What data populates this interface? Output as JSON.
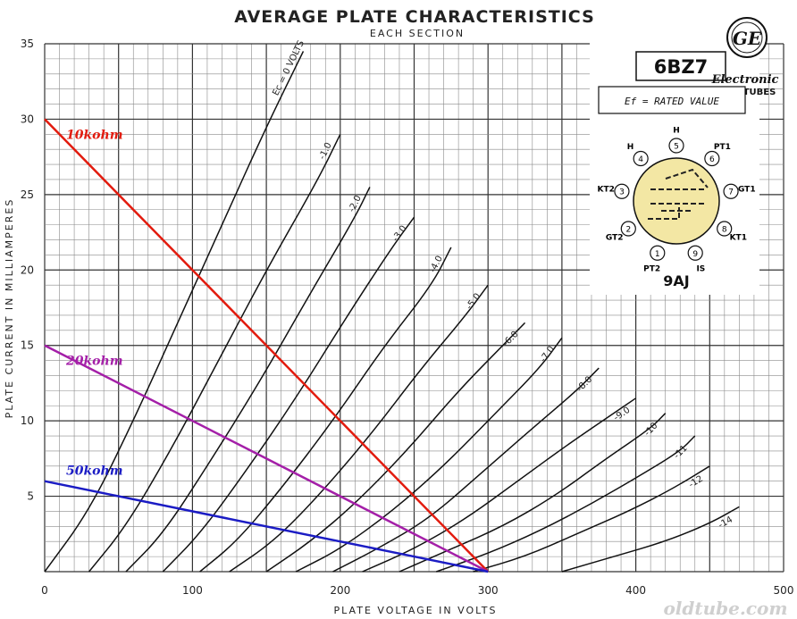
{
  "chart_data": {
    "type": "line",
    "title": "AVERAGE PLATE CHARACTERISTICS",
    "subtitle": "EACH SECTION",
    "xlabel": "PLATE VOLTAGE IN VOLTS",
    "ylabel": "PLATE CURRENT IN MILLIAMPERES",
    "xlim": [
      0,
      500
    ],
    "ylim": [
      0,
      35
    ],
    "x_ticks": [
      "0",
      "100",
      "200",
      "300",
      "400",
      "500"
    ],
    "y_ticks": [
      "5",
      "10",
      "15",
      "20",
      "25",
      "30",
      "35"
    ],
    "grid": true,
    "tube_curves": [
      {
        "label": "Ec = 0 VOLTS",
        "x0": 0,
        "points": [
          [
            0,
            0
          ],
          [
            30,
            4
          ],
          [
            60,
            10
          ],
          [
            90,
            16.5
          ],
          [
            120,
            23
          ],
          [
            150,
            29.5
          ],
          [
            175,
            34.5
          ]
        ]
      },
      {
        "label": "-1.0",
        "x0": 30,
        "points": [
          [
            30,
            0
          ],
          [
            55,
            3
          ],
          [
            85,
            8
          ],
          [
            115,
            13.5
          ],
          [
            150,
            20
          ],
          [
            185,
            26
          ],
          [
            200,
            29
          ]
        ]
      },
      {
        "label": "-2.0",
        "x0": 55,
        "points": [
          [
            55,
            0
          ],
          [
            80,
            2.5
          ],
          [
            110,
            7
          ],
          [
            145,
            12.5
          ],
          [
            180,
            18.5
          ],
          [
            210,
            23.5
          ],
          [
            220,
            25.5
          ]
        ]
      },
      {
        "label": "-3.0",
        "x0": 80,
        "points": [
          [
            80,
            0
          ],
          [
            105,
            2.5
          ],
          [
            135,
            6.5
          ],
          [
            170,
            11.5
          ],
          [
            205,
            17
          ],
          [
            235,
            21.5
          ],
          [
            250,
            23.5
          ]
        ]
      },
      {
        "label": "-4.0",
        "x0": 105,
        "points": [
          [
            105,
            0
          ],
          [
            130,
            2
          ],
          [
            160,
            5.5
          ],
          [
            195,
            10
          ],
          [
            230,
            15
          ],
          [
            262,
            19
          ],
          [
            275,
            21.5
          ]
        ]
      },
      {
        "label": "-5.0",
        "x0": 125,
        "points": [
          [
            125,
            0
          ],
          [
            155,
            2
          ],
          [
            185,
            5
          ],
          [
            220,
            9
          ],
          [
            255,
            13.5
          ],
          [
            285,
            17
          ],
          [
            300,
            19
          ]
        ]
      },
      {
        "label": "-6.0",
        "x0": 150,
        "points": [
          [
            150,
            0
          ],
          [
            180,
            2
          ],
          [
            210,
            4.5
          ],
          [
            245,
            8
          ],
          [
            280,
            12
          ],
          [
            310,
            15
          ],
          [
            325,
            16.5
          ]
        ]
      },
      {
        "label": "-7.0",
        "x0": 170,
        "points": [
          [
            170,
            0
          ],
          [
            200,
            1.5
          ],
          [
            235,
            4
          ],
          [
            270,
            7
          ],
          [
            305,
            10.5
          ],
          [
            335,
            13.5
          ],
          [
            350,
            15.5
          ]
        ]
      },
      {
        "label": "-8.0",
        "x0": 195,
        "points": [
          [
            195,
            0
          ],
          [
            225,
            1.5
          ],
          [
            260,
            3.5
          ],
          [
            295,
            6.5
          ],
          [
            330,
            9.5
          ],
          [
            360,
            12
          ],
          [
            375,
            13.5
          ]
        ]
      },
      {
        "label": "-9.0",
        "x0": 215,
        "points": [
          [
            215,
            0
          ],
          [
            250,
            1.5
          ],
          [
            285,
            3.5
          ],
          [
            320,
            6
          ],
          [
            355,
            8.5
          ],
          [
            385,
            10.5
          ],
          [
            400,
            11.5
          ]
        ]
      },
      {
        "label": "-10",
        "x0": 240,
        "points": [
          [
            240,
            0
          ],
          [
            275,
            1.5
          ],
          [
            310,
            3
          ],
          [
            345,
            5
          ],
          [
            380,
            7.5
          ],
          [
            410,
            9.5
          ],
          [
            420,
            10.5
          ]
        ]
      },
      {
        "label": "-11",
        "x0": 265,
        "points": [
          [
            265,
            0
          ],
          [
            300,
            1.2
          ],
          [
            335,
            2.7
          ],
          [
            370,
            4.5
          ],
          [
            405,
            6.5
          ],
          [
            430,
            8
          ],
          [
            440,
            9
          ]
        ]
      },
      {
        "label": "-12",
        "x0": 290,
        "points": [
          [
            290,
            0
          ],
          [
            325,
            1
          ],
          [
            360,
            2.5
          ],
          [
            395,
            4
          ],
          [
            425,
            5.5
          ],
          [
            450,
            7
          ]
        ]
      },
      {
        "label": "-14",
        "x0": 350,
        "points": [
          [
            350,
            0
          ],
          [
            385,
            1
          ],
          [
            420,
            2
          ],
          [
            450,
            3.2
          ],
          [
            470,
            4.3
          ]
        ]
      }
    ],
    "load_lines": [
      {
        "name": "10kohm",
        "color": "#e21b0e",
        "points": [
          [
            0,
            30
          ],
          [
            300,
            0
          ]
        ]
      },
      {
        "name": "20kohm",
        "color": "#a41fa8",
        "points": [
          [
            0,
            15
          ],
          [
            300,
            0
          ]
        ]
      },
      {
        "name": "50kohm",
        "color": "#1b1cc4",
        "points": [
          [
            0,
            6
          ],
          [
            300,
            0
          ]
        ]
      }
    ]
  },
  "tube": {
    "type": "6BZ7",
    "brand": "Electronic",
    "brand_sub": "TUBES",
    "logo_letters": "GE",
    "heater_note": "Ef = RATED VALUE",
    "basing": "9AJ",
    "pins": [
      {
        "num": "1",
        "name": "PT2"
      },
      {
        "num": "2",
        "name": "GT2"
      },
      {
        "num": "3",
        "name": "KT2"
      },
      {
        "num": "4",
        "name": "H"
      },
      {
        "num": "5",
        "name": "H"
      },
      {
        "num": "6",
        "name": "PT1"
      },
      {
        "num": "7",
        "name": "GT1"
      },
      {
        "num": "8",
        "name": "KT1"
      },
      {
        "num": "9",
        "name": "IS"
      }
    ]
  },
  "watermark": "oldtube.com"
}
